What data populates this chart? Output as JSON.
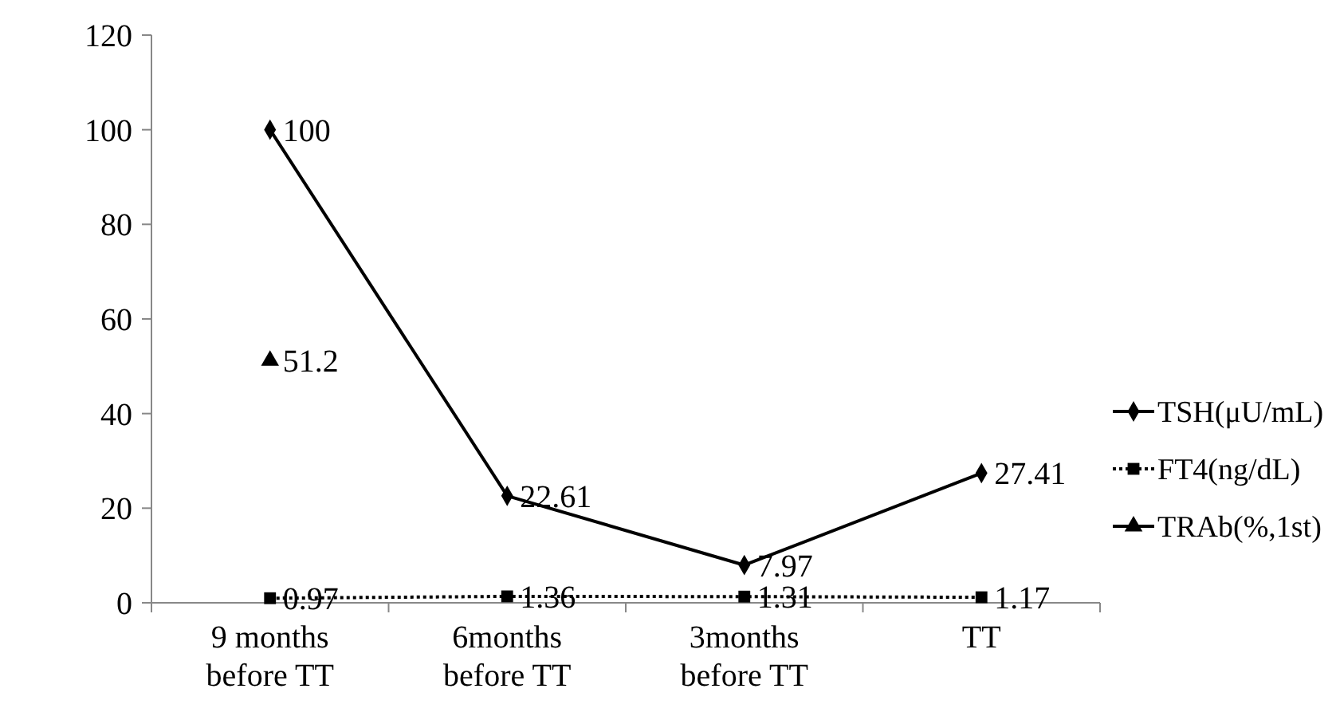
{
  "chart_data": {
    "type": "line",
    "categories": [
      "9 months\nbefore TT",
      "6months\nbefore TT",
      "3months\nbefore TT",
      "TT"
    ],
    "series": [
      {
        "name": "TSH(μU/mL)",
        "color": "#000000",
        "values": [
          100,
          22.61,
          7.97,
          27.41
        ],
        "marker": "diamond",
        "line_style": "solid"
      },
      {
        "name": "FT4(ng/dL)",
        "color": "#000000",
        "values": [
          0.97,
          1.36,
          1.31,
          1.17
        ],
        "marker": "square",
        "line_style": "dotted"
      },
      {
        "name": "TRAb(%,1st)",
        "color": "#000000",
        "values": [
          51.2,
          null,
          null,
          null
        ],
        "marker": "triangle",
        "line_style": "solid"
      }
    ],
    "ylim": [
      0,
      120
    ],
    "yticks": [
      0,
      20,
      40,
      60,
      80,
      100,
      120
    ],
    "grid": false,
    "legend": "right",
    "data_labels": true
  }
}
